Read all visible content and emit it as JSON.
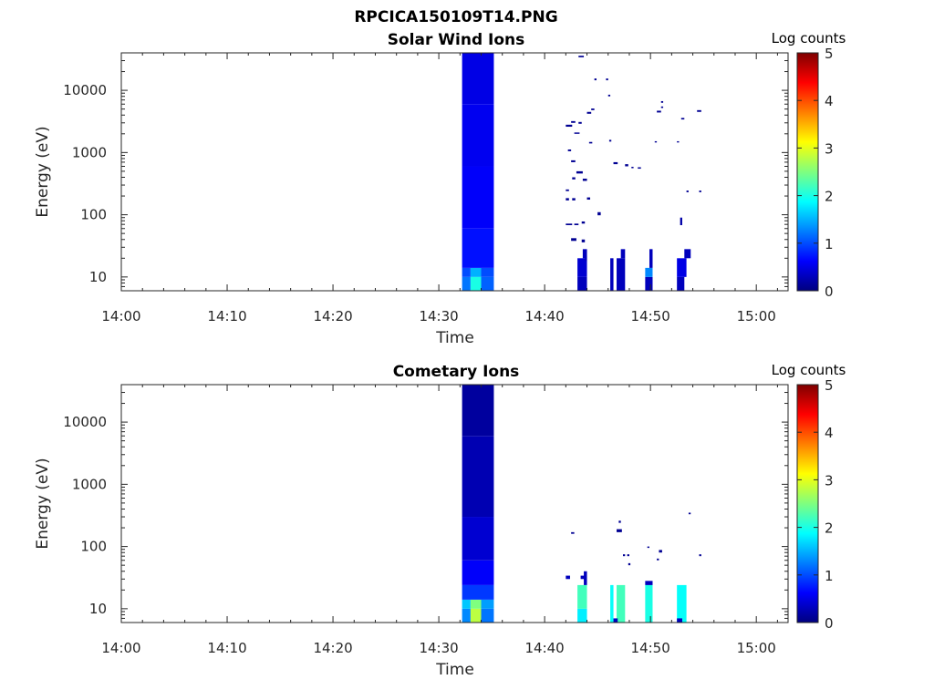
{
  "figure": {
    "title": "RPCICA150109T14.PNG"
  },
  "colors": {
    "axis": "#262626",
    "colormap": [
      "#00007f",
      "#0000ff",
      "#007fff",
      "#00ffff",
      "#7fff7f",
      "#ffff00",
      "#ff7f00",
      "#ff0000",
      "#7f0000"
    ]
  },
  "chart_data": [
    {
      "type": "heatmap",
      "title": "Solar Wind Ions",
      "xlabel": "Time",
      "ylabel": "Energy (eV)",
      "x_ticks": [
        "14:00",
        "14:10",
        "14:20",
        "14:30",
        "14:40",
        "14:50",
        "15:00"
      ],
      "y_ticks": [
        "10",
        "100",
        "1000",
        "10000"
      ],
      "y_scale": "log",
      "ylim": [
        6,
        40000
      ],
      "xlim_minutes_after_1400": [
        0,
        63
      ],
      "colorbar": {
        "label": "Log counts",
        "range": [
          0,
          5
        ],
        "ticks": [
          "0",
          "1",
          "2",
          "3",
          "4",
          "5"
        ]
      },
      "cells_format": "[minute_start, minute_end, energy_low_eV, energy_high_eV, log_counts]",
      "cells": [
        [
          32.2,
          33.0,
          6,
          10,
          1.2
        ],
        [
          33.0,
          34.0,
          6,
          10,
          2.0
        ],
        [
          34.0,
          35.2,
          6,
          10,
          1.1
        ],
        [
          32.2,
          33.0,
          10,
          14,
          1.0
        ],
        [
          33.0,
          34.0,
          10,
          14,
          1.5
        ],
        [
          34.0,
          35.2,
          10,
          14,
          1.0
        ],
        [
          32.2,
          35.2,
          14,
          60,
          0.7
        ],
        [
          32.2,
          35.2,
          60,
          600,
          0.6
        ],
        [
          32.2,
          35.2,
          600,
          6000,
          0.55
        ],
        [
          32.2,
          35.2,
          6000,
          40000,
          0.5
        ],
        [
          43.1,
          44.0,
          6,
          10,
          0.3
        ],
        [
          43.1,
          44.0,
          10,
          20,
          0.4
        ],
        [
          43.6,
          44.0,
          20,
          28,
          0.3
        ],
        [
          46.2,
          46.5,
          6,
          20,
          0.3
        ],
        [
          46.8,
          47.6,
          6,
          20,
          0.3
        ],
        [
          47.2,
          47.6,
          20,
          28,
          0.3
        ],
        [
          49.5,
          50.2,
          6,
          10,
          0.3
        ],
        [
          49.5,
          50.2,
          10,
          14,
          1.3
        ],
        [
          49.9,
          50.2,
          14,
          28,
          0.3
        ],
        [
          52.5,
          53.2,
          6,
          10,
          0.3
        ],
        [
          52.5,
          53.4,
          10,
          20,
          0.5
        ],
        [
          53.2,
          53.8,
          20,
          28,
          0.3
        ],
        [
          42.5,
          43.0,
          38,
          42,
          0.1
        ],
        [
          43.5,
          43.8,
          36,
          40,
          0.1
        ],
        [
          42.0,
          42.6,
          68,
          72,
          0.1
        ],
        [
          42.8,
          43.2,
          68,
          72,
          0.1
        ],
        [
          43.5,
          43.8,
          72,
          78,
          0.1
        ],
        [
          45.0,
          45.3,
          98,
          110,
          0.1
        ],
        [
          52.8,
          53.0,
          68,
          90,
          0.2
        ],
        [
          42.0,
          42.3,
          170,
          185,
          0.1
        ],
        [
          42.6,
          42.9,
          170,
          185,
          0.1
        ],
        [
          44.0,
          44.3,
          175,
          190,
          0.1
        ],
        [
          42.0,
          42.3,
          240,
          255,
          0.1
        ],
        [
          43.0,
          43.6,
          460,
          500,
          0.1
        ],
        [
          42.6,
          42.9,
          370,
          400,
          0.1
        ],
        [
          43.6,
          44.0,
          350,
          380,
          0.1
        ],
        [
          46.5,
          46.9,
          650,
          700,
          0.1
        ],
        [
          47.6,
          47.9,
          600,
          650,
          0.1
        ],
        [
          48.2,
          48.4,
          560,
          590,
          0.1
        ],
        [
          48.8,
          49.1,
          550,
          580,
          0.1
        ],
        [
          42.2,
          42.5,
          1050,
          1120,
          0.1
        ],
        [
          42.5,
          42.9,
          700,
          750,
          0.1
        ],
        [
          44.2,
          44.5,
          1400,
          1480,
          0.1
        ],
        [
          46.1,
          46.3,
          1500,
          1600,
          0.1
        ],
        [
          50.4,
          50.6,
          1450,
          1520,
          0.1
        ],
        [
          52.5,
          52.7,
          1450,
          1520,
          0.1
        ],
        [
          42.8,
          43.3,
          2000,
          2100,
          0.1
        ],
        [
          42.0,
          42.6,
          2600,
          2800,
          0.1
        ],
        [
          42.5,
          42.9,
          3000,
          3200,
          0.1
        ],
        [
          43.2,
          43.5,
          2900,
          3100,
          0.1
        ],
        [
          44.0,
          44.4,
          4200,
          4500,
          0.1
        ],
        [
          44.4,
          44.7,
          4800,
          5100,
          0.1
        ],
        [
          50.6,
          51.0,
          4400,
          4700,
          0.1
        ],
        [
          51.0,
          51.2,
          5200,
          5500,
          0.1
        ],
        [
          52.9,
          53.2,
          3400,
          3600,
          0.1
        ],
        [
          54.4,
          54.8,
          4500,
          4800,
          0.1
        ],
        [
          51.0,
          51.2,
          6300,
          6700,
          0.1
        ],
        [
          46.0,
          46.2,
          8000,
          8500,
          0.1
        ],
        [
          44.7,
          44.9,
          14500,
          15500,
          0.1
        ],
        [
          45.8,
          46.0,
          14500,
          15500,
          0.1
        ],
        [
          43.2,
          43.7,
          34000,
          36000,
          0.1
        ],
        [
          53.4,
          53.6,
          230,
          245,
          0.1
        ],
        [
          54.6,
          54.8,
          230,
          245,
          0.1
        ],
        [
          43.8,
          44.0,
          18,
          22,
          0.3
        ]
      ]
    },
    {
      "type": "heatmap",
      "title": "Cometary Ions",
      "xlabel": "Time",
      "ylabel": "Energy (eV)",
      "x_ticks": [
        "14:00",
        "14:10",
        "14:20",
        "14:30",
        "14:40",
        "14:50",
        "15:00"
      ],
      "y_ticks": [
        "10",
        "100",
        "1000",
        "10000"
      ],
      "y_scale": "log",
      "ylim": [
        6,
        40000
      ],
      "xlim_minutes_after_1400": [
        0,
        63
      ],
      "colorbar": {
        "label": "Log counts",
        "range": [
          0,
          5
        ],
        "ticks": [
          "0",
          "1",
          "2",
          "3",
          "4",
          "5"
        ]
      },
      "cells_format": "[minute_start, minute_end, energy_low_eV, energy_high_eV, log_counts]",
      "cells": [
        [
          32.2,
          33.0,
          6,
          10,
          1.3
        ],
        [
          33.0,
          34.0,
          6,
          10,
          2.8
        ],
        [
          34.0,
          35.2,
          6,
          10,
          1.2
        ],
        [
          32.2,
          33.0,
          10,
          14,
          1.6
        ],
        [
          33.0,
          34.0,
          10,
          14,
          2.5
        ],
        [
          34.0,
          35.2,
          10,
          14,
          1.4
        ],
        [
          32.2,
          35.2,
          14,
          24,
          0.9
        ],
        [
          32.2,
          35.2,
          24,
          60,
          0.6
        ],
        [
          32.2,
          35.2,
          60,
          300,
          0.4
        ],
        [
          32.2,
          35.2,
          300,
          6000,
          0.25
        ],
        [
          32.2,
          35.2,
          6000,
          40000,
          0.15
        ],
        [
          43.1,
          44.0,
          6,
          10,
          1.8
        ],
        [
          43.1,
          44.0,
          10,
          24,
          2.2
        ],
        [
          43.7,
          44.0,
          24,
          40,
          0.3
        ],
        [
          46.2,
          46.5,
          6,
          24,
          1.9
        ],
        [
          46.8,
          47.6,
          6,
          24,
          2.2
        ],
        [
          49.5,
          50.2,
          6,
          24,
          2.0
        ],
        [
          49.5,
          50.2,
          24,
          28,
          0.3
        ],
        [
          52.5,
          53.4,
          6,
          24,
          1.9
        ],
        [
          52.5,
          53.0,
          6,
          7,
          0.3
        ],
        [
          46.5,
          46.9,
          6,
          7,
          0.3
        ],
        [
          42.0,
          42.4,
          30,
          34,
          0.3
        ],
        [
          43.4,
          43.8,
          30,
          34,
          0.3
        ],
        [
          42.5,
          42.8,
          160,
          170,
          0.1
        ],
        [
          47.0,
          47.2,
          240,
          260,
          0.1
        ],
        [
          46.8,
          47.3,
          170,
          190,
          0.1
        ],
        [
          47.4,
          47.6,
          70,
          75,
          0.1
        ],
        [
          47.8,
          48.0,
          70,
          75,
          0.1
        ],
        [
          47.9,
          48.1,
          50,
          54,
          0.1
        ],
        [
          49.7,
          49.9,
          95,
          100,
          0.1
        ],
        [
          50.8,
          51.1,
          80,
          88,
          0.1
        ],
        [
          50.6,
          50.8,
          60,
          64,
          0.1
        ],
        [
          53.6,
          53.8,
          330,
          350,
          0.1
        ],
        [
          54.6,
          54.8,
          70,
          75,
          0.1
        ]
      ]
    }
  ]
}
